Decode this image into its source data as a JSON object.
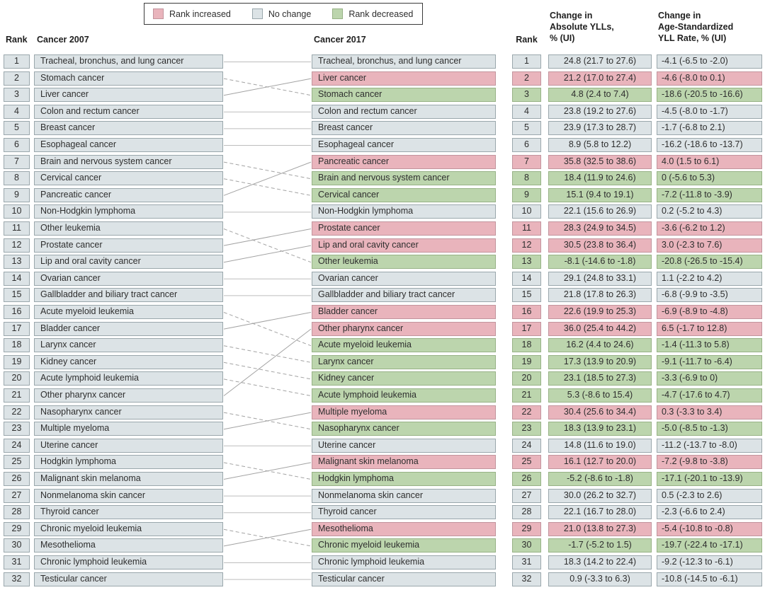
{
  "legend": {
    "items": [
      {
        "label": "Rank increased",
        "status": "increased"
      },
      {
        "label": "No change",
        "status": "no_change"
      },
      {
        "label": "Rank decreased",
        "status": "decreased"
      }
    ]
  },
  "headers": {
    "rank_2007": "Rank",
    "cancer_2007": "Cancer 2007",
    "cancer_2017": "Cancer 2017",
    "rank_2017": "Rank",
    "yll_change_lines": [
      "Change in",
      "Absolute YLLs,",
      "% (UI)"
    ],
    "rate_change_lines": [
      "Change in",
      "Age-Standardized",
      "YLL Rate, % (UI)"
    ]
  },
  "colors": {
    "increased": "#e9b4bc",
    "no_change": "#dce3e6",
    "decreased": "#bcd5ad",
    "increased_border": "#c2949d",
    "no_change_border": "#9aa7ac",
    "decreased_border": "#97b286",
    "connector": "#a3a3a3"
  },
  "chart_data": {
    "type": "table",
    "subtype": "rank-change-slope-chart",
    "description": "Leading causes of YLLs: cancer rank in 2007 vs 2017 with change in absolute YLLs and age-standardized YLL rate, % (UI). Solid connector = rank increased, dashed connector = rank decreased, straight connector = no change.",
    "rows": [
      {
        "rank_2007": "1",
        "cancer_2007": "Tracheal, bronchus, and lung cancer",
        "cancer_2017": "Tracheal, bronchus, and lung cancer",
        "rank_2017": "1",
        "status_2017": "no_change",
        "yll_change": "24.8 (21.7 to 27.6)",
        "rate_change": "-4.1 (-6.5 to -2.0)",
        "link_to_2017_rank": 1,
        "link_style": "straight"
      },
      {
        "rank_2007": "2",
        "cancer_2007": "Stomach cancer",
        "cancer_2017": "Liver cancer",
        "rank_2017": "2",
        "status_2017": "increased",
        "yll_change": "21.2 (17.0 to 27.4)",
        "rate_change": "-4.6 (-8.0 to 0.1)",
        "link_to_2017_rank": 3,
        "link_style": "dashed"
      },
      {
        "rank_2007": "3",
        "cancer_2007": "Liver cancer",
        "cancer_2017": "Stomach cancer",
        "rank_2017": "3",
        "status_2017": "decreased",
        "yll_change": "4.8 (2.4 to 7.4)",
        "rate_change": "-18.6 (-20.5 to -16.6)",
        "link_to_2017_rank": 2,
        "link_style": "solid"
      },
      {
        "rank_2007": "4",
        "cancer_2007": "Colon and rectum cancer",
        "cancer_2017": "Colon and rectum cancer",
        "rank_2017": "4",
        "status_2017": "no_change",
        "yll_change": "23.8 (19.2 to 27.6)",
        "rate_change": "-4.5 (-8.0 to -1.7)",
        "link_to_2017_rank": 4,
        "link_style": "straight"
      },
      {
        "rank_2007": "5",
        "cancer_2007": "Breast cancer",
        "cancer_2017": "Breast cancer",
        "rank_2017": "5",
        "status_2017": "no_change",
        "yll_change": "23.9 (17.3 to 28.7)",
        "rate_change": "-1.7 (-6.8 to 2.1)",
        "link_to_2017_rank": 5,
        "link_style": "straight"
      },
      {
        "rank_2007": "6",
        "cancer_2007": "Esophageal cancer",
        "cancer_2017": "Esophageal cancer",
        "rank_2017": "6",
        "status_2017": "no_change",
        "yll_change": "8.9 (5.8 to 12.2)",
        "rate_change": "-16.2 (-18.6 to -13.7)",
        "link_to_2017_rank": 6,
        "link_style": "straight"
      },
      {
        "rank_2007": "7",
        "cancer_2007": "Brain and nervous system cancer",
        "cancer_2017": "Pancreatic cancer",
        "rank_2017": "7",
        "status_2017": "increased",
        "yll_change": "35.8 (32.5 to 38.6)",
        "rate_change": "4.0 (1.5 to 6.1)",
        "link_to_2017_rank": 8,
        "link_style": "dashed"
      },
      {
        "rank_2007": "8",
        "cancer_2007": "Cervical cancer",
        "cancer_2017": "Brain and nervous system cancer",
        "rank_2017": "8",
        "status_2017": "decreased",
        "yll_change": "18.4 (11.9 to 24.6)",
        "rate_change": "0 (-5.6 to 5.3)",
        "link_to_2017_rank": 9,
        "link_style": "dashed"
      },
      {
        "rank_2007": "9",
        "cancer_2007": "Pancreatic cancer",
        "cancer_2017": "Cervical cancer",
        "rank_2017": "9",
        "status_2017": "decreased",
        "yll_change": "15.1 (9.4 to 19.1)",
        "rate_change": "-7.2 (-11.8 to -3.9)",
        "link_to_2017_rank": 7,
        "link_style": "solid"
      },
      {
        "rank_2007": "10",
        "cancer_2007": "Non-Hodgkin lymphoma",
        "cancer_2017": "Non-Hodgkin lymphoma",
        "rank_2017": "10",
        "status_2017": "no_change",
        "yll_change": "22.1 (15.6 to 26.9)",
        "rate_change": "0.2 (-5.2 to 4.3)",
        "link_to_2017_rank": 10,
        "link_style": "straight"
      },
      {
        "rank_2007": "11",
        "cancer_2007": "Other leukemia",
        "cancer_2017": "Prostate cancer",
        "rank_2017": "11",
        "status_2017": "increased",
        "yll_change": "28.3 (24.9 to 34.5)",
        "rate_change": "-3.6 (-6.2 to 1.2)",
        "link_to_2017_rank": 13,
        "link_style": "dashed"
      },
      {
        "rank_2007": "12",
        "cancer_2007": "Prostate cancer",
        "cancer_2017": "Lip and oral cavity cancer",
        "rank_2017": "12",
        "status_2017": "increased",
        "yll_change": "30.5 (23.8 to 36.4)",
        "rate_change": "3.0 (-2.3 to 7.6)",
        "link_to_2017_rank": 11,
        "link_style": "solid"
      },
      {
        "rank_2007": "13",
        "cancer_2007": "Lip and oral cavity cancer",
        "cancer_2017": "Other leukemia",
        "rank_2017": "13",
        "status_2017": "decreased",
        "yll_change": "-8.1 (-14.6 to -1.8)",
        "rate_change": "-20.8 (-26.5 to -15.4)",
        "link_to_2017_rank": 12,
        "link_style": "solid"
      },
      {
        "rank_2007": "14",
        "cancer_2007": "Ovarian cancer",
        "cancer_2017": "Ovarian cancer",
        "rank_2017": "14",
        "status_2017": "no_change",
        "yll_change": "29.1 (24.8 to 33.1)",
        "rate_change": "1.1 (-2.2 to 4.2)",
        "link_to_2017_rank": 14,
        "link_style": "straight"
      },
      {
        "rank_2007": "15",
        "cancer_2007": "Gallbladder and biliary tract cancer",
        "cancer_2017": "Gallbladder and biliary tract cancer",
        "rank_2017": "15",
        "status_2017": "no_change",
        "yll_change": "21.8 (17.8 to 26.3)",
        "rate_change": "-6.8 (-9.9 to -3.5)",
        "link_to_2017_rank": 15,
        "link_style": "straight"
      },
      {
        "rank_2007": "16",
        "cancer_2007": "Acute myeloid leukemia",
        "cancer_2017": "Bladder cancer",
        "rank_2017": "16",
        "status_2017": "increased",
        "yll_change": "22.6 (19.9 to 25.3)",
        "rate_change": "-6.9 (-8.9 to -4.8)",
        "link_to_2017_rank": 18,
        "link_style": "dashed"
      },
      {
        "rank_2007": "17",
        "cancer_2007": "Bladder cancer",
        "cancer_2017": "Other pharynx cancer",
        "rank_2017": "17",
        "status_2017": "increased",
        "yll_change": "36.0 (25.4 to 44.2)",
        "rate_change": "6.5 (-1.7 to 12.8)",
        "link_to_2017_rank": 16,
        "link_style": "solid"
      },
      {
        "rank_2007": "18",
        "cancer_2007": "Larynx cancer",
        "cancer_2017": "Acute myeloid leukemia",
        "rank_2017": "18",
        "status_2017": "decreased",
        "yll_change": "16.2 (4.4 to 24.6)",
        "rate_change": "-1.4 (-11.3 to 5.8)",
        "link_to_2017_rank": 19,
        "link_style": "dashed"
      },
      {
        "rank_2007": "19",
        "cancer_2007": "Kidney cancer",
        "cancer_2017": "Larynx cancer",
        "rank_2017": "19",
        "status_2017": "decreased",
        "yll_change": "17.3 (13.9 to 20.9)",
        "rate_change": "-9.1 (-11.7 to -6.4)",
        "link_to_2017_rank": 20,
        "link_style": "dashed"
      },
      {
        "rank_2007": "20",
        "cancer_2007": "Acute lymphoid leukemia",
        "cancer_2017": "Kidney cancer",
        "rank_2017": "20",
        "status_2017": "decreased",
        "yll_change": "23.1 (18.5 to 27.3)",
        "rate_change": "-3.3 (-6.9 to 0)",
        "link_to_2017_rank": 21,
        "link_style": "dashed"
      },
      {
        "rank_2007": "21",
        "cancer_2007": "Other pharynx cancer",
        "cancer_2017": "Acute lymphoid leukemia",
        "rank_2017": "21",
        "status_2017": "decreased",
        "yll_change": "5.3 (-8.6 to 15.4)",
        "rate_change": "-4.7 (-17.6 to 4.7)",
        "link_to_2017_rank": 17,
        "link_style": "solid"
      },
      {
        "rank_2007": "22",
        "cancer_2007": "Nasopharynx cancer",
        "cancer_2017": "Multiple myeloma",
        "rank_2017": "22",
        "status_2017": "increased",
        "yll_change": "30.4 (25.6 to 34.4)",
        "rate_change": "0.3 (-3.3 to 3.4)",
        "link_to_2017_rank": 23,
        "link_style": "dashed"
      },
      {
        "rank_2007": "23",
        "cancer_2007": "Multiple myeloma",
        "cancer_2017": "Nasopharynx cancer",
        "rank_2017": "23",
        "status_2017": "decreased",
        "yll_change": "18.3 (13.9 to 23.1)",
        "rate_change": "-5.0 (-8.5 to -1.3)",
        "link_to_2017_rank": 22,
        "link_style": "solid"
      },
      {
        "rank_2007": "24",
        "cancer_2007": "Uterine cancer",
        "cancer_2017": "Uterine cancer",
        "rank_2017": "24",
        "status_2017": "no_change",
        "yll_change": "14.8 (11.6 to 19.0)",
        "rate_change": "-11.2 (-13.7 to -8.0)",
        "link_to_2017_rank": 24,
        "link_style": "straight"
      },
      {
        "rank_2007": "25",
        "cancer_2007": "Hodgkin lymphoma",
        "cancer_2017": "Malignant skin melanoma",
        "rank_2017": "25",
        "status_2017": "increased",
        "yll_change": "16.1 (12.7 to 20.0)",
        "rate_change": "-7.2 (-9.8 to -3.8)",
        "link_to_2017_rank": 26,
        "link_style": "dashed"
      },
      {
        "rank_2007": "26",
        "cancer_2007": "Malignant skin melanoma",
        "cancer_2017": "Hodgkin lymphoma",
        "rank_2017": "26",
        "status_2017": "decreased",
        "yll_change": "-5.2 (-8.6 to -1.8)",
        "rate_change": "-17.1 (-20.1 to -13.9)",
        "link_to_2017_rank": 25,
        "link_style": "solid"
      },
      {
        "rank_2007": "27",
        "cancer_2007": "Nonmelanoma skin cancer",
        "cancer_2017": "Nonmelanoma skin cancer",
        "rank_2017": "27",
        "status_2017": "no_change",
        "yll_change": "30.0 (26.2 to 32.7)",
        "rate_change": "0.5 (-2.3 to 2.6)",
        "link_to_2017_rank": 27,
        "link_style": "straight"
      },
      {
        "rank_2007": "28",
        "cancer_2007": "Thyroid cancer",
        "cancer_2017": "Thyroid cancer",
        "rank_2017": "28",
        "status_2017": "no_change",
        "yll_change": "22.1 (16.7 to 28.0)",
        "rate_change": "-2.3 (-6.6 to 2.4)",
        "link_to_2017_rank": 28,
        "link_style": "straight"
      },
      {
        "rank_2007": "29",
        "cancer_2007": "Chronic myeloid leukemia",
        "cancer_2017": "Mesothelioma",
        "rank_2017": "29",
        "status_2017": "increased",
        "yll_change": "21.0 (13.8 to 27.3)",
        "rate_change": "-5.4 (-10.8 to -0.8)",
        "link_to_2017_rank": 30,
        "link_style": "dashed"
      },
      {
        "rank_2007": "30",
        "cancer_2007": "Mesothelioma",
        "cancer_2017": "Chronic myeloid leukemia",
        "rank_2017": "30",
        "status_2017": "decreased",
        "yll_change": "-1.7 (-5.2 to 1.5)",
        "rate_change": "-19.7 (-22.4 to -17.1)",
        "link_to_2017_rank": 29,
        "link_style": "solid"
      },
      {
        "rank_2007": "31",
        "cancer_2007": "Chronic lymphoid leukemia",
        "cancer_2017": "Chronic lymphoid leukemia",
        "rank_2017": "31",
        "status_2017": "no_change",
        "yll_change": "18.3 (14.2 to 22.4)",
        "rate_change": "-9.2 (-12.3 to -6.1)",
        "link_to_2017_rank": 31,
        "link_style": "straight"
      },
      {
        "rank_2007": "32",
        "cancer_2007": "Testicular cancer",
        "cancer_2017": "Testicular cancer",
        "rank_2017": "32",
        "status_2017": "no_change",
        "yll_change": "0.9 (-3.3 to 6.3)",
        "rate_change": "-10.8 (-14.5 to -6.1)",
        "link_to_2017_rank": 32,
        "link_style": "straight"
      }
    ]
  }
}
